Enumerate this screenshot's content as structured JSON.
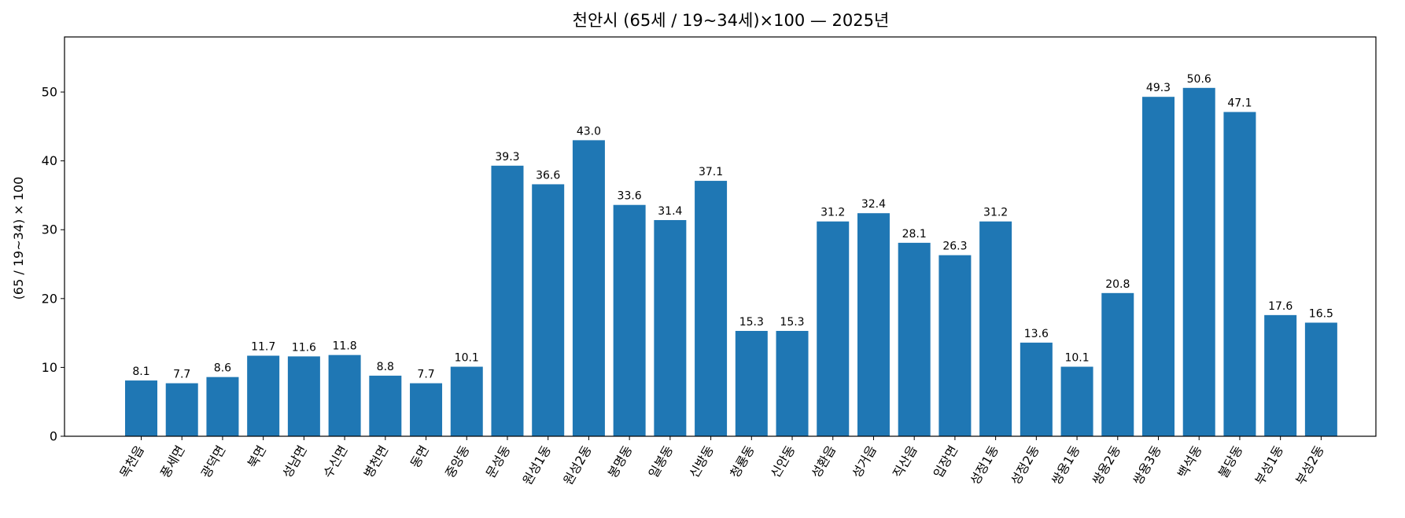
{
  "chart_data": {
    "type": "bar",
    "title": "천안시 (65세 / 19~34세)×100 — 2025년",
    "xlabel": "",
    "ylabel": "(65 / 19~34) × 100",
    "ylim": [
      0,
      58
    ],
    "yticks": [
      0,
      10,
      20,
      30,
      40,
      50
    ],
    "grid": false,
    "bar_color": "#1f77b4",
    "categories": [
      "목천읍",
      "풍세면",
      "광덕면",
      "북면",
      "성남면",
      "수신면",
      "병천면",
      "동면",
      "중앙동",
      "문성동",
      "원성1동",
      "원성2동",
      "봉명동",
      "일봉동",
      "신방동",
      "청룡동",
      "신안동",
      "성환읍",
      "성거읍",
      "직산읍",
      "입장면",
      "성정1동",
      "성정2동",
      "쌍용1동",
      "쌍용2동",
      "쌍용3동",
      "백석동",
      "불당동",
      "부성1동",
      "부성2동"
    ],
    "values": [
      8.1,
      7.7,
      8.6,
      11.7,
      11.6,
      11.8,
      8.8,
      7.7,
      10.1,
      39.3,
      36.6,
      43.0,
      33.6,
      31.4,
      37.1,
      15.3,
      15.3,
      31.2,
      32.4,
      28.1,
      26.3,
      31.2,
      13.6,
      10.1,
      20.8,
      49.3,
      50.6,
      47.1,
      17.6,
      16.5
    ],
    "value_labels": [
      "8.1",
      "7.7",
      "8.6",
      "11.7",
      "11.6",
      "11.8",
      "8.8",
      "7.7",
      "10.1",
      "39.3",
      "36.6",
      "43.0",
      "33.6",
      "31.4",
      "37.1",
      "15.3",
      "15.3",
      "31.2",
      "32.4",
      "28.1",
      "26.3",
      "31.2",
      "13.6",
      "10.1",
      "20.8",
      "49.3",
      "50.6",
      "47.1",
      "17.6",
      "16.5"
    ]
  }
}
